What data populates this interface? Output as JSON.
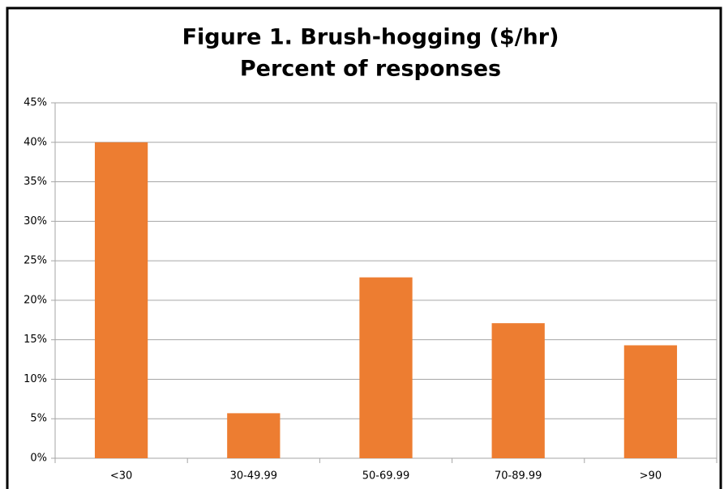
{
  "chart_data": {
    "type": "bar",
    "title": "Figure 1. Brush-hogging ($/hr)",
    "subtitle": "Percent of responses",
    "categories": [
      "<30",
      "30-49.99",
      "50-69.99",
      "70-89.99",
      ">90"
    ],
    "values": [
      40,
      5.7,
      22.9,
      17.1,
      14.3
    ],
    "color": "#ed7d31",
    "ylim": [
      0,
      45
    ],
    "yticks": [
      {
        "value": 0,
        "label": "0%"
      },
      {
        "value": 5,
        "label": "5%"
      },
      {
        "value": 10,
        "label": "10%"
      },
      {
        "value": 15,
        "label": "15%"
      },
      {
        "value": 20,
        "label": "20%"
      },
      {
        "value": 25,
        "label": "25%"
      },
      {
        "value": 30,
        "label": "30%"
      },
      {
        "value": 35,
        "label": "35%"
      },
      {
        "value": 40,
        "label": "40%"
      },
      {
        "value": 45,
        "label": "45%"
      }
    ],
    "grid": true
  }
}
